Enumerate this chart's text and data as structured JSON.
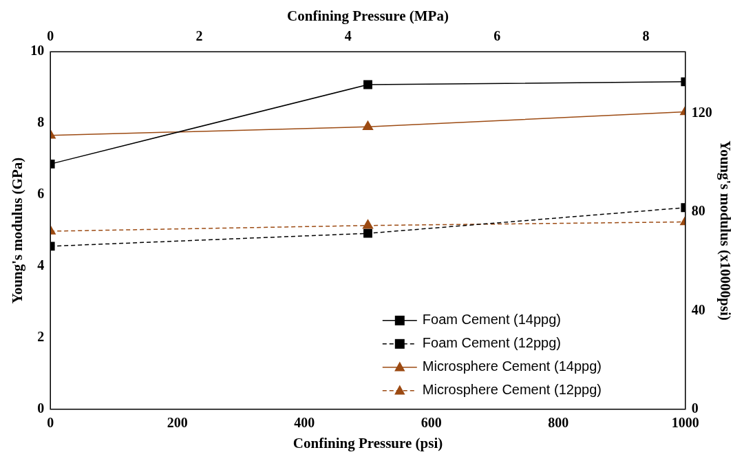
{
  "chart_data": {
    "type": "line",
    "xlabel": "Confining Pressure (psi)",
    "ylabel": "Young's modulus (GPa)",
    "y2label": "Young's modulus (x10000psi)",
    "x2label": "Confining Pressure (MPa)",
    "x": [
      0,
      500,
      1000
    ],
    "series": [
      {
        "name": "Foam Cement (14ppg)",
        "color": "#000000",
        "marker": "square",
        "line_style": "solid",
        "values": [
          6.86,
          9.08,
          9.16
        ]
      },
      {
        "name": "Foam Cement (12ppg)",
        "color": "#000000",
        "marker": "square",
        "line_style": "dashed",
        "values": [
          4.56,
          4.92,
          5.64
        ]
      },
      {
        "name": "Microsphere Cement (14ppg)",
        "color": "#9c4a12",
        "marker": "triangle",
        "line_style": "solid",
        "values": [
          7.66,
          7.9,
          8.32
        ]
      },
      {
        "name": "Microsphere Cement (12ppg)",
        "color": "#9c4a12",
        "marker": "triangle",
        "line_style": "dashed",
        "values": [
          4.98,
          5.14,
          5.24
        ]
      }
    ],
    "xlim": [
      0,
      1000
    ],
    "xticks": [
      0,
      200,
      400,
      600,
      800,
      1000
    ],
    "ylim": [
      0,
      10
    ],
    "yticks": [
      0,
      2,
      4,
      6,
      8,
      10
    ],
    "x2lim": [
      0,
      8.53
    ],
    "x2ticks": [
      0,
      2,
      4,
      6,
      8
    ],
    "y2lim": [
      0,
      145
    ],
    "y2ticks": [
      0,
      40,
      80,
      120
    ],
    "grid": false,
    "legend": "bottom right"
  }
}
